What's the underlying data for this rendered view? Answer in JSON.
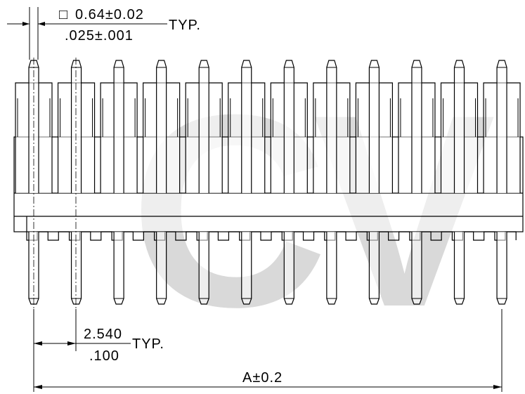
{
  "watermark": {
    "letter_c": "C",
    "letter_v": "V",
    "color": "#d9d9d9"
  },
  "dimensions": {
    "pin_size": {
      "square_symbol": "□",
      "metric": "0.64±0.02",
      "imperial": ".025±.001",
      "suffix": "TYP."
    },
    "pitch": {
      "metric": "2.540",
      "imperial": ".100",
      "suffix": "TYP."
    },
    "overall_length": {
      "label": "A±0.2"
    }
  },
  "connector": {
    "pin_count": 12,
    "line_color": "#000000"
  }
}
